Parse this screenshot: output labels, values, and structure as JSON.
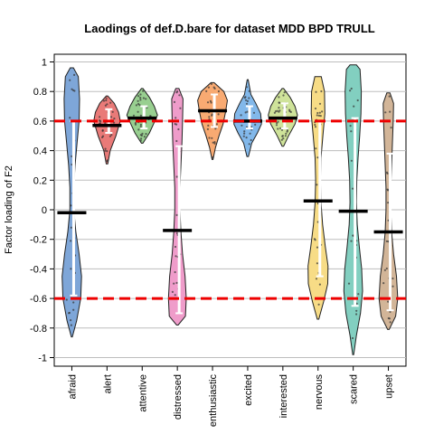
{
  "chart_data": {
    "type": "violin",
    "title": "Laodings of def.D.bare for dataset MDD BPD TRULL",
    "xlabel": "",
    "ylabel": "Factor loading of F2",
    "ylim": [
      -1.05,
      1.05
    ],
    "yticks": [
      1,
      0.8,
      0.6,
      0.4,
      0.2,
      0,
      -0.2,
      -0.4,
      -0.6,
      -0.8,
      -1
    ],
    "ytick_labels": [
      "1",
      "0.8",
      "0.6",
      "0.4",
      "0.2",
      "0",
      "-0.2",
      "-0.4",
      "-0.6",
      "-0.8",
      "-1"
    ],
    "grid": true,
    "reference_lines": [
      0.6,
      -0.6
    ],
    "reference_line_color": "#ee0000",
    "categories": [
      "afraid",
      "alert",
      "attentive",
      "distressed",
      "enthusiastic",
      "excited",
      "interested",
      "nervous",
      "scared",
      "upset"
    ],
    "series": [
      {
        "category": "afraid",
        "color": "#7ea6d8",
        "min": -0.86,
        "max": 0.96,
        "mean": -0.02,
        "q1": -0.58,
        "q3": 0.6,
        "profile": [
          [
            -0.86,
            0.03
          ],
          [
            -0.75,
            0.3
          ],
          [
            -0.6,
            0.55
          ],
          [
            -0.45,
            0.6
          ],
          [
            -0.3,
            0.45
          ],
          [
            -0.15,
            0.25
          ],
          [
            0,
            0.12
          ],
          [
            0.15,
            0.12
          ],
          [
            0.3,
            0.2
          ],
          [
            0.45,
            0.32
          ],
          [
            0.6,
            0.45
          ],
          [
            0.75,
            0.48
          ],
          [
            0.9,
            0.4
          ],
          [
            0.96,
            0.1
          ]
        ]
      },
      {
        "category": "alert",
        "color": "#e97a78",
        "min": 0.31,
        "max": 0.77,
        "mean": 0.57,
        "q1": 0.52,
        "q3": 0.68,
        "profile": [
          [
            0.31,
            0.05
          ],
          [
            0.4,
            0.2
          ],
          [
            0.5,
            0.55
          ],
          [
            0.6,
            0.82
          ],
          [
            0.66,
            0.72
          ],
          [
            0.72,
            0.45
          ],
          [
            0.77,
            0.05
          ]
        ]
      },
      {
        "category": "attentive",
        "color": "#98cf90",
        "min": 0.45,
        "max": 0.82,
        "mean": 0.62,
        "q1": 0.55,
        "q3": 0.7,
        "profile": [
          [
            0.45,
            0.05
          ],
          [
            0.52,
            0.45
          ],
          [
            0.58,
            0.7
          ],
          [
            0.64,
            0.95
          ],
          [
            0.7,
            0.75
          ],
          [
            0.76,
            0.45
          ],
          [
            0.82,
            0.05
          ]
        ]
      },
      {
        "category": "distressed",
        "color": "#ef9cca",
        "min": -0.78,
        "max": 0.82,
        "mean": -0.14,
        "q1": -0.7,
        "q3": 0.43,
        "profile": [
          [
            -0.78,
            0.05
          ],
          [
            -0.72,
            0.5
          ],
          [
            -0.6,
            0.55
          ],
          [
            -0.45,
            0.48
          ],
          [
            -0.3,
            0.32
          ],
          [
            -0.15,
            0.22
          ],
          [
            0,
            0.16
          ],
          [
            0.15,
            0.16
          ],
          [
            0.3,
            0.22
          ],
          [
            0.45,
            0.28
          ],
          [
            0.6,
            0.32
          ],
          [
            0.75,
            0.35
          ],
          [
            0.82,
            0.1
          ]
        ]
      },
      {
        "category": "enthusiastic",
        "color": "#f8aa72",
        "min": 0.34,
        "max": 0.86,
        "mean": 0.67,
        "q1": 0.56,
        "q3": 0.78,
        "profile": [
          [
            0.34,
            0.03
          ],
          [
            0.42,
            0.18
          ],
          [
            0.5,
            0.4
          ],
          [
            0.58,
            0.65
          ],
          [
            0.66,
            0.8
          ],
          [
            0.74,
            0.92
          ],
          [
            0.8,
            0.7
          ],
          [
            0.86,
            0.1
          ]
        ]
      },
      {
        "category": "excited",
        "color": "#82b8ea",
        "min": 0.36,
        "max": 0.88,
        "mean": 0.6,
        "q1": 0.55,
        "q3": 0.7,
        "profile": [
          [
            0.36,
            0.05
          ],
          [
            0.45,
            0.25
          ],
          [
            0.52,
            0.6
          ],
          [
            0.58,
            0.85
          ],
          [
            0.65,
            0.8
          ],
          [
            0.72,
            0.5
          ],
          [
            0.78,
            0.2
          ],
          [
            0.88,
            0.03
          ]
        ]
      },
      {
        "category": "interested",
        "color": "#cfe39a",
        "min": 0.43,
        "max": 0.82,
        "mean": 0.62,
        "q1": 0.55,
        "q3": 0.72,
        "profile": [
          [
            0.43,
            0.05
          ],
          [
            0.5,
            0.35
          ],
          [
            0.58,
            0.75
          ],
          [
            0.64,
            0.9
          ],
          [
            0.7,
            0.75
          ],
          [
            0.76,
            0.45
          ],
          [
            0.82,
            0.05
          ]
        ]
      },
      {
        "category": "nervous",
        "color": "#f7dc86",
        "min": -0.74,
        "max": 0.9,
        "mean": 0.06,
        "q1": -0.45,
        "q3": 0.6,
        "profile": [
          [
            -0.74,
            0.05
          ],
          [
            -0.62,
            0.35
          ],
          [
            -0.5,
            0.6
          ],
          [
            -0.38,
            0.62
          ],
          [
            -0.25,
            0.45
          ],
          [
            -0.1,
            0.28
          ],
          [
            0.05,
            0.18
          ],
          [
            0.2,
            0.15
          ],
          [
            0.35,
            0.18
          ],
          [
            0.5,
            0.3
          ],
          [
            0.65,
            0.42
          ],
          [
            0.8,
            0.4
          ],
          [
            0.9,
            0.2
          ]
        ]
      },
      {
        "category": "scared",
        "color": "#82cfc0",
        "min": -0.98,
        "max": 0.98,
        "mean": -0.01,
        "q1": -0.65,
        "q3": 0.62,
        "profile": [
          [
            -0.98,
            0.03
          ],
          [
            -0.85,
            0.2
          ],
          [
            -0.7,
            0.45
          ],
          [
            -0.55,
            0.58
          ],
          [
            -0.4,
            0.52
          ],
          [
            -0.25,
            0.38
          ],
          [
            -0.1,
            0.25
          ],
          [
            0.05,
            0.2
          ],
          [
            0.2,
            0.22
          ],
          [
            0.35,
            0.3
          ],
          [
            0.5,
            0.4
          ],
          [
            0.65,
            0.48
          ],
          [
            0.8,
            0.5
          ],
          [
            0.95,
            0.42
          ],
          [
            0.98,
            0.2
          ]
        ]
      },
      {
        "category": "upset",
        "color": "#d2b598",
        "min": -0.81,
        "max": 0.79,
        "mean": -0.15,
        "q1": -0.68,
        "q3": 0.38,
        "profile": [
          [
            -0.81,
            0.05
          ],
          [
            -0.72,
            0.45
          ],
          [
            -0.6,
            0.58
          ],
          [
            -0.45,
            0.5
          ],
          [
            -0.3,
            0.32
          ],
          [
            -0.15,
            0.2
          ],
          [
            0,
            0.15
          ],
          [
            0.15,
            0.15
          ],
          [
            0.3,
            0.2
          ],
          [
            0.45,
            0.25
          ],
          [
            0.6,
            0.3
          ],
          [
            0.72,
            0.32
          ],
          [
            0.79,
            0.1
          ]
        ]
      }
    ]
  }
}
